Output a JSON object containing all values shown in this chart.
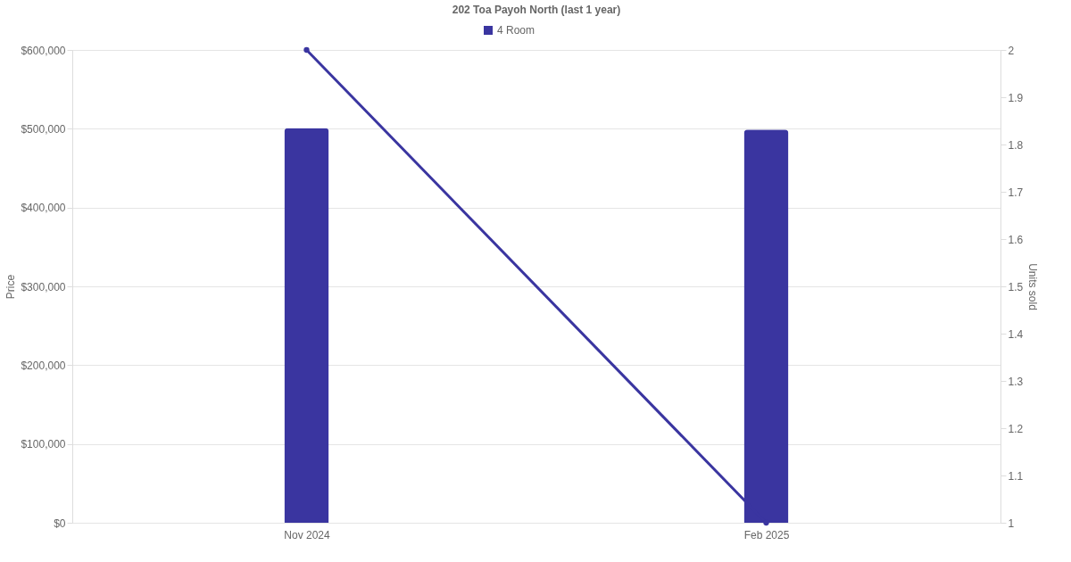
{
  "chart_data": {
    "type": "bar",
    "title": "202 Toa Payoh North (last 1 year)",
    "categories": [
      "Nov 2024",
      "Feb 2025"
    ],
    "series": [
      {
        "name": "4 Room",
        "color": "#3a35a0",
        "values": [
          501000,
          499000
        ]
      },
      {
        "type": "line",
        "axis": "y2",
        "color": "#3a35a0",
        "values": [
          2,
          1
        ]
      }
    ],
    "ylabel": "Price",
    "y2label": "Units sold",
    "ylim": [
      0,
      600000
    ],
    "yticks": [
      {
        "value": 0,
        "label": "$0"
      },
      {
        "value": 100000,
        "label": "$100,000"
      },
      {
        "value": 200000,
        "label": "$200,000"
      },
      {
        "value": 300000,
        "label": "$300,000"
      },
      {
        "value": 400000,
        "label": "$400,000"
      },
      {
        "value": 500000,
        "label": "$500,000"
      },
      {
        "value": 600000,
        "label": "$600,000"
      }
    ],
    "y2lim": [
      1,
      2
    ],
    "y2ticks": [
      1,
      1.1,
      1.2,
      1.3,
      1.4,
      1.5,
      1.6,
      1.7,
      1.8,
      1.9,
      2
    ],
    "grid": "y",
    "legend": "top",
    "marker": "circle",
    "line_style": "solid"
  }
}
